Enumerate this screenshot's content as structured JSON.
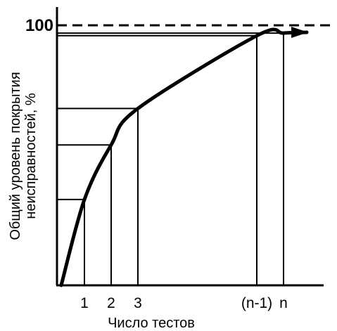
{
  "chart_data": {
    "type": "line",
    "xlabel": "Число тестов",
    "ylabel_line1": "Общий уровень покрытия",
    "ylabel_line2": "неисправностей, %",
    "y_reference": {
      "value": 100,
      "label": "100"
    },
    "x_ticks": [
      "1",
      "2",
      "3",
      "(n-1)",
      "n"
    ],
    "ylim": [
      0,
      100
    ],
    "series": [
      {
        "points": [
          {
            "x": "0",
            "y": 0
          },
          {
            "x": "1",
            "y": 33
          },
          {
            "x": "2",
            "y": 54
          },
          {
            "x": "3",
            "y": 68
          },
          {
            "x": "(n-1)",
            "y": 96
          },
          {
            "x": "n",
            "y": 97
          }
        ]
      }
    ],
    "colors": {
      "line": "#000000",
      "background": "#ffffff"
    }
  }
}
